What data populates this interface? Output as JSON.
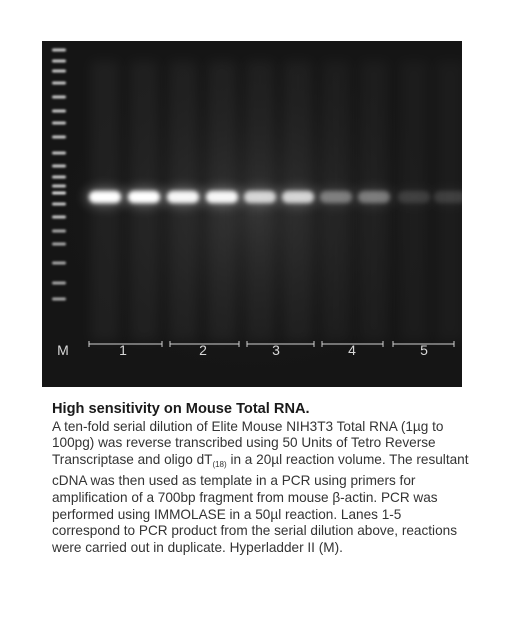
{
  "gel": {
    "lanes": [
      {
        "label": "M",
        "bracket_pair": false
      },
      {
        "label": "1",
        "bracket_pair": true
      },
      {
        "label": "2",
        "bracket_pair": true
      },
      {
        "label": "3",
        "bracket_pair": true
      },
      {
        "label": "4",
        "bracket_pair": true
      },
      {
        "label": "5",
        "bracket_pair": true
      }
    ],
    "band_intensities": [
      1.0,
      1.0,
      0.95,
      0.95,
      0.75,
      0.75,
      0.35,
      0.35,
      0.12,
      0.12
    ],
    "colors": {
      "background": "#151515",
      "band": "#ffffff",
      "label": "#d8d8d8"
    }
  },
  "caption": {
    "title": "High sensitivity on Mouse Total RNA.",
    "body_part1": "A ten-fold serial dilution of Elite Mouse NIH3T3 Total RNA (1µg to 100pg) was reverse transcribed using 50 Units of Tetro Reverse Transcriptase and oligo dT",
    "subscript": "(18)",
    "body_part2": " in a 20µl reaction volume. The resultant cDNA was then used as template in a PCR using primers for amplification of a 700bp fragment from mouse β-actin. PCR was performed using IMMOLASE in a 50µl reaction. Lanes 1-5 correspond to PCR product from the serial dilution above, reactions were carried out in duplicate. Hyperladder II (M)."
  }
}
